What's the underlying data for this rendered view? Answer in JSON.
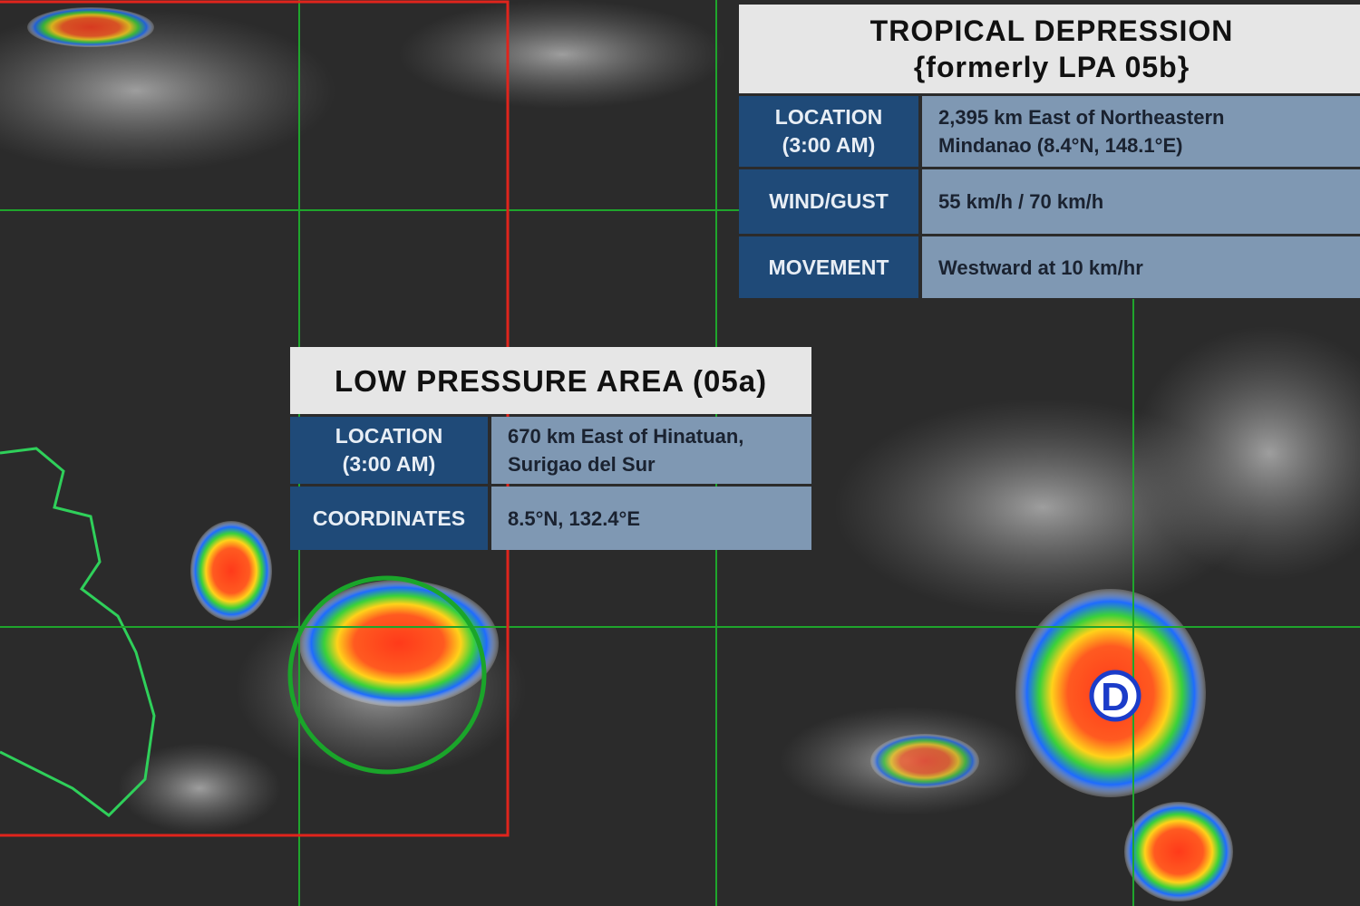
{
  "tropical_depression": {
    "title": "TROPICAL DEPRESSION",
    "subtitle": "{formerly LPA 05b}",
    "rows": [
      {
        "label": [
          "LOCATION",
          "(3:00 AM)"
        ],
        "value": [
          "2,395 km East of Northeastern",
          "Mindanao (8.4°N, 148.1°E)"
        ]
      },
      {
        "label": [
          "WIND/GUST"
        ],
        "value": [
          "55 km/h / 70 km/h"
        ]
      },
      {
        "label": [
          "MOVEMENT"
        ],
        "value": [
          "Westward at 10 km/hr"
        ]
      }
    ]
  },
  "low_pressure_area": {
    "title": "LOW PRESSURE AREA (05a)",
    "rows": [
      {
        "label": [
          "LOCATION",
          "(3:00 AM)"
        ],
        "value": [
          "670 km East of Hinatuan,",
          "Surigao del Sur"
        ]
      },
      {
        "label": [
          "COORDINATES"
        ],
        "value": [
          "8.5°N, 132.4°E"
        ]
      }
    ]
  },
  "marker_label": "D"
}
